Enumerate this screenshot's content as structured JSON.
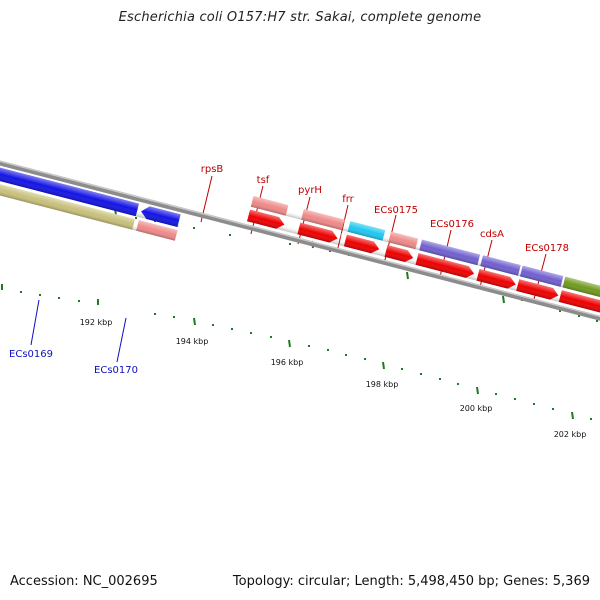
{
  "title": "Escherichia coli O157:H7 str. Sakai, complete genome",
  "accession": "Accession: NC_002695",
  "summary": "Topology: circular; Length: 5,498,450 bp; Genes: 5,369",
  "colors": {
    "backbone": "#8c8c8c",
    "tick": "#1f7a1f",
    "label_forward": "#c00000",
    "label_reverse": "#1010c0",
    "cds_red": "#ee0000",
    "pink": "#ef8a8a",
    "blue": "#1414e6",
    "cyan": "#1ec8f0",
    "purple": "#7060d0",
    "olive": "#6f9a1e",
    "khaki": "#c8c07a"
  },
  "scale_labels": [
    "192 kbp",
    "194 kbp",
    "196 kbp",
    "198 kbp",
    "200 kbp",
    "202 kbp"
  ],
  "gene_labels_forward": [
    "rpsB",
    "tsf",
    "pyrH",
    "frr",
    "ECs0175",
    "ECs0176",
    "cdsA",
    "ECs0178"
  ],
  "gene_labels_reverse": [
    "ECs0169",
    "ECs0170"
  ]
}
